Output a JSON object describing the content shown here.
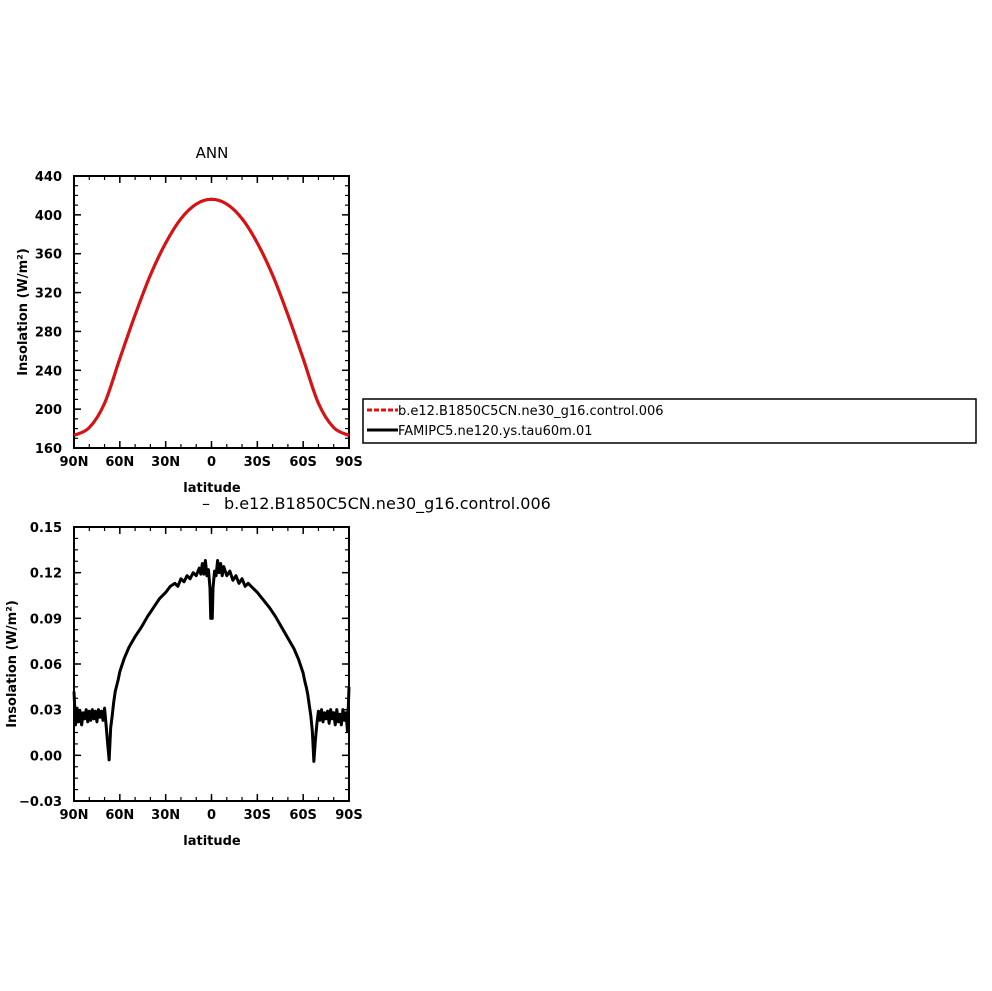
{
  "chart_data": [
    {
      "type": "line",
      "title": "ANN",
      "xlabel": "latitude",
      "ylabel": "Insolation (W/m²)",
      "xlim": [
        -90,
        90
      ],
      "x_ticks": [
        -90,
        -60,
        -30,
        0,
        30,
        60,
        90
      ],
      "x_tick_labels": [
        "90N",
        "60N",
        "30N",
        "0",
        "30S",
        "60S",
        "90S"
      ],
      "ylim": [
        160,
        440
      ],
      "y_ticks": [
        160,
        200,
        240,
        280,
        320,
        360,
        400,
        440
      ],
      "y_tick_labels": [
        "160",
        "200",
        "240",
        "280",
        "320",
        "360",
        "400",
        "440"
      ],
      "legend_position": "right",
      "x": [
        -90,
        -80,
        -70,
        -60,
        -50,
        -40,
        -30,
        -20,
        -10,
        0,
        10,
        20,
        30,
        40,
        50,
        60,
        70,
        80,
        90
      ],
      "series": [
        {
          "name": "b.e12.B1850C5CN.ne30_g16.control.006",
          "color": "#e01010",
          "dash": "dashed",
          "values": [
            173,
            181,
            206,
            252,
            297,
            338,
            371,
            396,
            411,
            416,
            411,
            396,
            371,
            338,
            297,
            252,
            206,
            181,
            173
          ]
        },
        {
          "name": "FAMIPC5.ne120.ys.tau60m.01",
          "color": "#000000",
          "dash": "solid",
          "values": [
            173,
            181,
            206,
            252,
            297,
            338,
            371,
            396,
            411,
            416,
            411,
            396,
            371,
            338,
            297,
            252,
            206,
            181,
            173
          ]
        }
      ]
    },
    {
      "type": "line",
      "title": "b.e12.B1850C5CN.ne30_g16.control.006",
      "title_prefix": "–",
      "xlabel": "latitude",
      "ylabel": "Insolation (W/m²)",
      "xlim": [
        -90,
        90
      ],
      "x_ticks": [
        -90,
        -60,
        -30,
        0,
        30,
        60,
        90
      ],
      "x_tick_labels": [
        "90N",
        "60N",
        "30N",
        "0",
        "30S",
        "60S",
        "90S"
      ],
      "ylim": [
        -0.03,
        0.15
      ],
      "y_ticks": [
        -0.03,
        0.0,
        0.03,
        0.06,
        0.09,
        0.12,
        0.15
      ],
      "y_tick_labels": [
        "−0.03",
        "0.00",
        "0.03",
        "0.06",
        "0.09",
        "0.12",
        "0.15"
      ],
      "series": [
        {
          "name": "",
          "color": "#000000",
          "points": [
            [
              -90,
              0.042
            ],
            [
              -89,
              0.02
            ],
            [
              -88,
              0.031
            ],
            [
              -87,
              0.022
            ],
            [
              -86,
              0.029
            ],
            [
              -85,
              0.02
            ],
            [
              -84,
              0.028
            ],
            [
              -83,
              0.024
            ],
            [
              -82,
              0.03
            ],
            [
              -81,
              0.022
            ],
            [
              -80,
              0.029
            ],
            [
              -79,
              0.023
            ],
            [
              -78,
              0.03
            ],
            [
              -77,
              0.024
            ],
            [
              -76,
              0.029
            ],
            [
              -75,
              0.022
            ],
            [
              -74,
              0.03
            ],
            [
              -73,
              0.025
            ],
            [
              -72,
              0.029
            ],
            [
              -71,
              0.023
            ],
            [
              -70,
              0.031
            ],
            [
              -69,
              0.02
            ],
            [
              -68,
              0.008
            ],
            [
              -67,
              -0.003
            ],
            [
              -66,
              0.018
            ],
            [
              -65,
              0.026
            ],
            [
              -64,
              0.035
            ],
            [
              -63,
              0.042
            ],
            [
              -62,
              0.046
            ],
            [
              -61,
              0.05
            ],
            [
              -60,
              0.055
            ],
            [
              -57,
              0.064
            ],
            [
              -54,
              0.071
            ],
            [
              -50,
              0.078
            ],
            [
              -46,
              0.084
            ],
            [
              -42,
              0.091
            ],
            [
              -38,
              0.097
            ],
            [
              -34,
              0.103
            ],
            [
              -30,
              0.107
            ],
            [
              -27,
              0.111
            ],
            [
              -24,
              0.113
            ],
            [
              -22,
              0.111
            ],
            [
              -20,
              0.116
            ],
            [
              -18,
              0.114
            ],
            [
              -16,
              0.118
            ],
            [
              -14,
              0.116
            ],
            [
              -12,
              0.12
            ],
            [
              -10,
              0.118
            ],
            [
              -8,
              0.123
            ],
            [
              -7,
              0.119
            ],
            [
              -6,
              0.126
            ],
            [
              -5,
              0.119
            ],
            [
              -4,
              0.128
            ],
            [
              -3,
              0.118
            ],
            [
              -2,
              0.122
            ],
            [
              -1,
              0.11
            ],
            [
              -0.5,
              0.09
            ],
            [
              0.5,
              0.09
            ],
            [
              1,
              0.11
            ],
            [
              2,
              0.121
            ],
            [
              3,
              0.118
            ],
            [
              4,
              0.128
            ],
            [
              5,
              0.12
            ],
            [
              6,
              0.126
            ],
            [
              7,
              0.118
            ],
            [
              8,
              0.124
            ],
            [
              10,
              0.118
            ],
            [
              12,
              0.121
            ],
            [
              14,
              0.115
            ],
            [
              16,
              0.118
            ],
            [
              18,
              0.113
            ],
            [
              20,
              0.116
            ],
            [
              22,
              0.111
            ],
            [
              24,
              0.113
            ],
            [
              27,
              0.11
            ],
            [
              30,
              0.107
            ],
            [
              34,
              0.102
            ],
            [
              38,
              0.097
            ],
            [
              42,
              0.091
            ],
            [
              46,
              0.084
            ],
            [
              50,
              0.077
            ],
            [
              54,
              0.07
            ],
            [
              57,
              0.063
            ],
            [
              60,
              0.054
            ],
            [
              61,
              0.049
            ],
            [
              62,
              0.045
            ],
            [
              63,
              0.04
            ],
            [
              64,
              0.033
            ],
            [
              65,
              0.026
            ],
            [
              66,
              0.016
            ],
            [
              67,
              -0.004
            ],
            [
              68,
              0.01
            ],
            [
              69,
              0.021
            ],
            [
              70,
              0.029
            ],
            [
              71,
              0.023
            ],
            [
              72,
              0.03
            ],
            [
              73,
              0.022
            ],
            [
              74,
              0.028
            ],
            [
              75,
              0.024
            ],
            [
              76,
              0.029
            ],
            [
              77,
              0.021
            ],
            [
              78,
              0.03
            ],
            [
              79,
              0.024
            ],
            [
              80,
              0.028
            ],
            [
              81,
              0.02
            ],
            [
              82,
              0.03
            ],
            [
              83,
              0.022
            ],
            [
              84,
              0.027
            ],
            [
              85,
              0.02
            ],
            [
              86,
              0.03
            ],
            [
              87,
              0.023
            ],
            [
              88,
              0.028
            ],
            [
              89,
              0.016
            ],
            [
              90,
              0.045
            ]
          ]
        }
      ]
    }
  ]
}
